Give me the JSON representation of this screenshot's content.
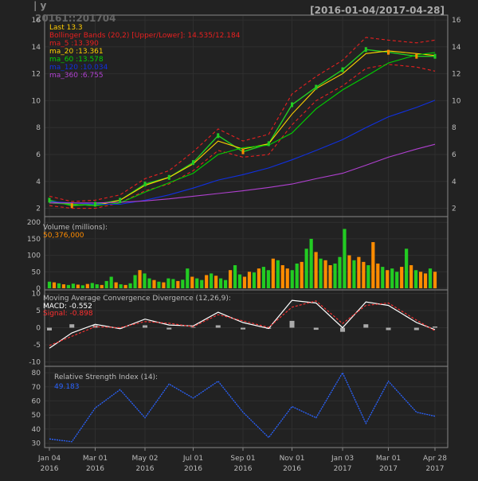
{
  "header": {
    "symbol": "20161::201704",
    "range": "[2016-01-04/2017-04-28]",
    "corner": "| y"
  },
  "colors": {
    "background": "#222222",
    "frame": "#888888",
    "grid": "#2f2f2f",
    "text": "#bbbbbb",
    "price_up": "#22cc22",
    "price_down": "#ff8c00",
    "last": "#ffcc00",
    "bbands": "#e82020",
    "ma5": "#e82020",
    "ma20": "#ffd000",
    "ma60": "#00d000",
    "ma120": "#1030e0",
    "ma360": "#b040d0",
    "macd": "#ffffff",
    "signal": "#ff3030",
    "hist": "#aaaaaa",
    "rsi": "#2a63ff"
  },
  "chart_data": [
    {
      "type": "line",
      "panel": "price",
      "title": "",
      "ylim": [
        1.5,
        16.3
      ],
      "yticks": [
        2,
        4,
        6,
        8,
        10,
        12,
        14,
        16
      ],
      "x_dates": [
        "2016-01-04",
        "2016-02-01",
        "2016-03-01",
        "2016-04-01",
        "2016-05-02",
        "2016-06-01",
        "2016-07-01",
        "2016-08-01",
        "2016-09-01",
        "2016-10-03",
        "2016-11-01",
        "2016-12-01",
        "2017-01-03",
        "2017-02-01",
        "2017-03-01",
        "2017-04-05",
        "2017-04-28"
      ],
      "legend": {
        "last": "Last 13.3",
        "bbands": "Bollinger Bands (20,2) [Upper/Lower]: 14.535/12.184",
        "ma5": "ma_5 :13.390",
        "ma20": "ma_20 :13.361",
        "ma60": "ma_60 :13.578",
        "ma120": "ma_120 :10.034",
        "ma360": "ma_360 :6.755"
      },
      "series": [
        {
          "key": "close",
          "values": [
            2.6,
            2.2,
            2.3,
            2.6,
            3.8,
            4.3,
            5.4,
            7.4,
            6.2,
            6.8,
            9.7,
            11.0,
            12.3,
            13.8,
            13.6,
            13.3,
            13.3
          ]
        },
        {
          "key": "bb_upper",
          "values": [
            2.9,
            2.5,
            2.6,
            3.0,
            4.2,
            4.8,
            6.2,
            7.9,
            7.0,
            7.5,
            10.5,
            11.8,
            13.0,
            14.7,
            14.5,
            14.3,
            14.5
          ]
        },
        {
          "key": "bb_lower",
          "values": [
            2.2,
            2.0,
            2.0,
            2.4,
            3.3,
            3.8,
            4.8,
            6.3,
            5.8,
            6.0,
            8.2,
            10.0,
            11.1,
            12.4,
            12.7,
            12.5,
            12.2
          ]
        },
        {
          "key": "ma20",
          "values": [
            2.5,
            2.3,
            2.2,
            2.6,
            3.7,
            4.3,
            5.3,
            7.0,
            6.4,
            6.8,
            9.0,
            10.9,
            12.0,
            13.5,
            13.7,
            13.5,
            13.36
          ]
        },
        {
          "key": "ma60",
          "values": [
            2.4,
            2.3,
            2.2,
            2.4,
            3.2,
            3.9,
            4.6,
            6.0,
            6.5,
            6.7,
            7.6,
            9.4,
            10.8,
            11.8,
            12.8,
            13.4,
            13.58
          ]
        },
        {
          "key": "ma120",
          "values": [
            2.5,
            2.4,
            2.3,
            2.3,
            2.6,
            3.0,
            3.5,
            4.1,
            4.5,
            5.0,
            5.6,
            6.3,
            7.1,
            8.0,
            8.8,
            9.5,
            10.03
          ]
        },
        {
          "key": "ma360",
          "values": [
            2.4,
            2.4,
            2.4,
            2.45,
            2.55,
            2.7,
            2.9,
            3.1,
            3.3,
            3.55,
            3.8,
            4.2,
            4.6,
            5.2,
            5.8,
            6.4,
            6.755
          ]
        }
      ]
    },
    {
      "type": "bar",
      "panel": "volume",
      "title": "Volume (millions):",
      "value_label": "50,376,000",
      "ylim": [
        0,
        215
      ],
      "yticks": [
        0,
        50,
        100,
        150,
        200
      ],
      "bars": [
        20,
        18,
        15,
        12,
        10,
        14,
        11,
        9,
        13,
        16,
        12,
        10,
        22,
        35,
        18,
        12,
        10,
        15,
        40,
        55,
        45,
        30,
        25,
        20,
        18,
        30,
        28,
        22,
        26,
        60,
        35,
        30,
        25,
        40,
        45,
        38,
        30,
        25,
        55,
        70,
        42,
        35,
        50,
        48,
        60,
        65,
        55,
        90,
        85,
        70,
        60,
        55,
        75,
        80,
        120,
        150,
        110,
        90,
        85,
        70,
        75,
        95,
        180,
        100,
        85,
        95,
        80,
        70,
        140,
        75,
        65,
        55,
        60,
        50,
        65,
        120,
        70,
        55,
        50,
        45,
        60,
        50
      ],
      "bar_up": [
        1,
        0,
        1,
        0,
        1,
        1,
        0,
        1,
        0,
        1,
        1,
        0,
        1,
        1,
        0,
        1,
        0,
        1,
        1,
        0,
        1,
        1,
        0,
        1,
        0,
        1,
        1,
        0,
        1,
        1,
        0,
        1,
        1,
        0,
        1,
        0,
        1,
        1,
        0,
        1,
        1,
        0,
        0,
        1,
        0,
        1,
        1,
        0,
        1,
        0,
        0,
        1,
        1,
        0,
        1,
        1,
        0,
        1,
        0,
        0,
        1,
        1,
        1,
        0,
        1,
        0,
        0,
        1,
        0,
        0,
        1,
        0,
        1,
        1,
        0,
        1,
        0,
        1,
        0,
        0,
        1,
        0
      ]
    },
    {
      "type": "line",
      "panel": "macd",
      "title": "Moving Average Convergence Divergence (12,26,9):",
      "ylim": [
        -10.8,
        10.8
      ],
      "yticks": [
        -10,
        -5,
        0,
        5,
        10
      ],
      "macd_label": "MACD: -0.552",
      "signal_label": "Signal: -0.898",
      "series": [
        {
          "key": "macd",
          "values": [
            -6.0,
            -1.5,
            1.0,
            -0.3,
            2.5,
            0.8,
            0.5,
            4.5,
            1.5,
            -0.2,
            8.0,
            7.2,
            0.0,
            7.5,
            6.5,
            1.5,
            -0.55
          ]
        },
        {
          "key": "signal",
          "values": [
            -5.2,
            -2.5,
            0.3,
            0.0,
            1.8,
            1.3,
            0.3,
            3.8,
            2.0,
            0.1,
            6.0,
            7.8,
            1.2,
            6.5,
            7.2,
            2.2,
            -0.9
          ]
        }
      ]
    },
    {
      "type": "line",
      "panel": "rsi",
      "title": "Relative Strength Index (14):",
      "value_label": "49.183",
      "ylim": [
        28,
        84
      ],
      "yticks": [
        30,
        40,
        50,
        60,
        70,
        80
      ],
      "series": [
        {
          "key": "rsi",
          "values": [
            33,
            31,
            55,
            68,
            48,
            72,
            62,
            74,
            52,
            34,
            56,
            48,
            80,
            44,
            74,
            52,
            49.18
          ]
        }
      ]
    }
  ],
  "x_axis": {
    "labels": [
      {
        "top": "Jan 04",
        "bottom": "2016",
        "date": "2016-01-04"
      },
      {
        "top": "Mar 01",
        "bottom": "2016",
        "date": "2016-03-01"
      },
      {
        "top": "May 02",
        "bottom": "2016",
        "date": "2016-05-02"
      },
      {
        "top": "Jul 01",
        "bottom": "2016",
        "date": "2016-07-01"
      },
      {
        "top": "Sep 01",
        "bottom": "2016",
        "date": "2016-09-01"
      },
      {
        "top": "Nov 01",
        "bottom": "2016",
        "date": "2016-11-01"
      },
      {
        "top": "Jan 03",
        "bottom": "2017",
        "date": "2017-01-03"
      },
      {
        "top": "Mar 01",
        "bottom": "2017",
        "date": "2017-03-01"
      },
      {
        "top": "Apr 28",
        "bottom": "2017",
        "date": "2017-04-28"
      }
    ]
  }
}
